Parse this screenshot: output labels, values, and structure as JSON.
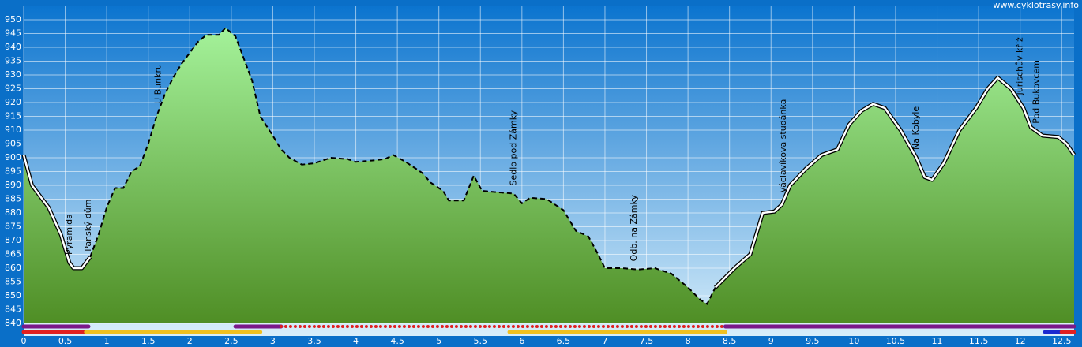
{
  "chart_data": {
    "type": "area",
    "watermark": "www.cyklotrasy.info",
    "x": [
      0,
      0.1,
      0.3,
      0.45,
      0.55,
      0.6,
      0.7,
      0.8,
      0.9,
      1.0,
      1.1,
      1.2,
      1.3,
      1.4,
      1.5,
      1.6,
      1.7,
      1.8,
      1.9,
      2.0,
      2.1,
      2.2,
      2.35,
      2.43,
      2.55,
      2.75,
      2.85,
      3.0,
      3.1,
      3.2,
      3.35,
      3.5,
      3.7,
      3.9,
      4.0,
      4.2,
      4.35,
      4.45,
      4.6,
      4.8,
      4.9,
      5.05,
      5.12,
      5.3,
      5.42,
      5.52,
      5.7,
      5.9,
      6.0,
      6.1,
      6.3,
      6.5,
      6.65,
      6.8,
      6.9,
      7.0,
      7.2,
      7.4,
      7.6,
      7.8,
      8.0,
      8.15,
      8.23,
      8.33,
      8.56,
      8.75,
      8.9,
      9.04,
      9.13,
      9.23,
      9.42,
      9.61,
      9.8,
      9.94,
      10.09,
      10.23,
      10.37,
      10.56,
      10.75,
      10.85,
      10.94,
      11.08,
      11.27,
      11.47,
      11.61,
      11.73,
      11.89,
      12.04,
      12.13,
      12.27,
      12.46,
      12.56,
      12.65
    ],
    "values": [
      901,
      890,
      882,
      872,
      862,
      860,
      860,
      864,
      872,
      882,
      889,
      889,
      895,
      897,
      905,
      915,
      923,
      929,
      934,
      938,
      942,
      944.5,
      944.5,
      947,
      944,
      928,
      915,
      908,
      903,
      900,
      897.5,
      898,
      900,
      899.5,
      898.5,
      899,
      899.5,
      901,
      898.5,
      894.5,
      891,
      888,
      884.5,
      884.5,
      893.5,
      888,
      887.5,
      887,
      883.5,
      885.5,
      885,
      881,
      873.5,
      871.5,
      866,
      860,
      860,
      859.5,
      860,
      858,
      853,
      848.5,
      847,
      853,
      860,
      865,
      880,
      880.5,
      883,
      890,
      896,
      901,
      903,
      912,
      917,
      919.5,
      918,
      910,
      900,
      893,
      892,
      898,
      910,
      918,
      925,
      929,
      925,
      918,
      911,
      908,
      907.5,
      905,
      901
    ],
    "dashed_range": [
      0.75,
      8.4
    ],
    "markers": [
      {
        "label": "Pyramida",
        "x": 0.55
      },
      {
        "label": "Panský dům",
        "x": 0.78
      },
      {
        "label": "U Bunkru",
        "x": 1.62
      },
      {
        "label": "Sedlo pod Zámky",
        "x": 5.9
      },
      {
        "label": "Odb. na Zámky",
        "x": 7.35
      },
      {
        "label": "Václavíkova studánka",
        "x": 9.15
      },
      {
        "label": "Na Kobyle",
        "x": 10.75
      },
      {
        "label": "Jurischův kříž",
        "x": 12.0
      },
      {
        "label": "Pod Bukovcem",
        "x": 12.2
      }
    ],
    "track_bars": [
      {
        "row": 0,
        "from": 0,
        "to": 0.78,
        "color": "#7a1a8a"
      },
      {
        "row": 0,
        "from": 2.55,
        "to": 3.1,
        "color": "#7a1a8a"
      },
      {
        "row": 0,
        "from": 3.1,
        "to": 8.45,
        "color": "#e02020",
        "style": "dotted"
      },
      {
        "row": 0,
        "from": 8.45,
        "to": 12.65,
        "color": "#7a1a8a"
      },
      {
        "row": 1,
        "from": 0,
        "to": 0.75,
        "color": "#e02020"
      },
      {
        "row": 1,
        "from": 0.75,
        "to": 2.85,
        "color": "#f0c020"
      },
      {
        "row": 1,
        "from": 5.85,
        "to": 8.45,
        "color": "#f0c020"
      },
      {
        "row": 1,
        "from": 12.3,
        "to": 12.5,
        "color": "#1a2ad0"
      },
      {
        "row": 1,
        "from": 12.5,
        "to": 12.65,
        "color": "#e02020"
      }
    ],
    "xlim": [
      0,
      12.65
    ],
    "xticks": [
      0,
      0.5,
      1,
      1.5,
      2,
      2.5,
      3,
      3.5,
      4,
      4.5,
      5,
      5.5,
      6,
      6.5,
      7,
      7.5,
      8,
      8.5,
      9,
      9.5,
      10,
      10.5,
      11,
      11.5,
      12,
      12.5
    ],
    "ylim": [
      840,
      950
    ],
    "yticks": [
      840,
      845,
      850,
      855,
      860,
      865,
      870,
      875,
      880,
      885,
      890,
      895,
      900,
      905,
      910,
      915,
      920,
      925,
      930,
      935,
      940,
      945,
      950
    ],
    "grid": true
  }
}
